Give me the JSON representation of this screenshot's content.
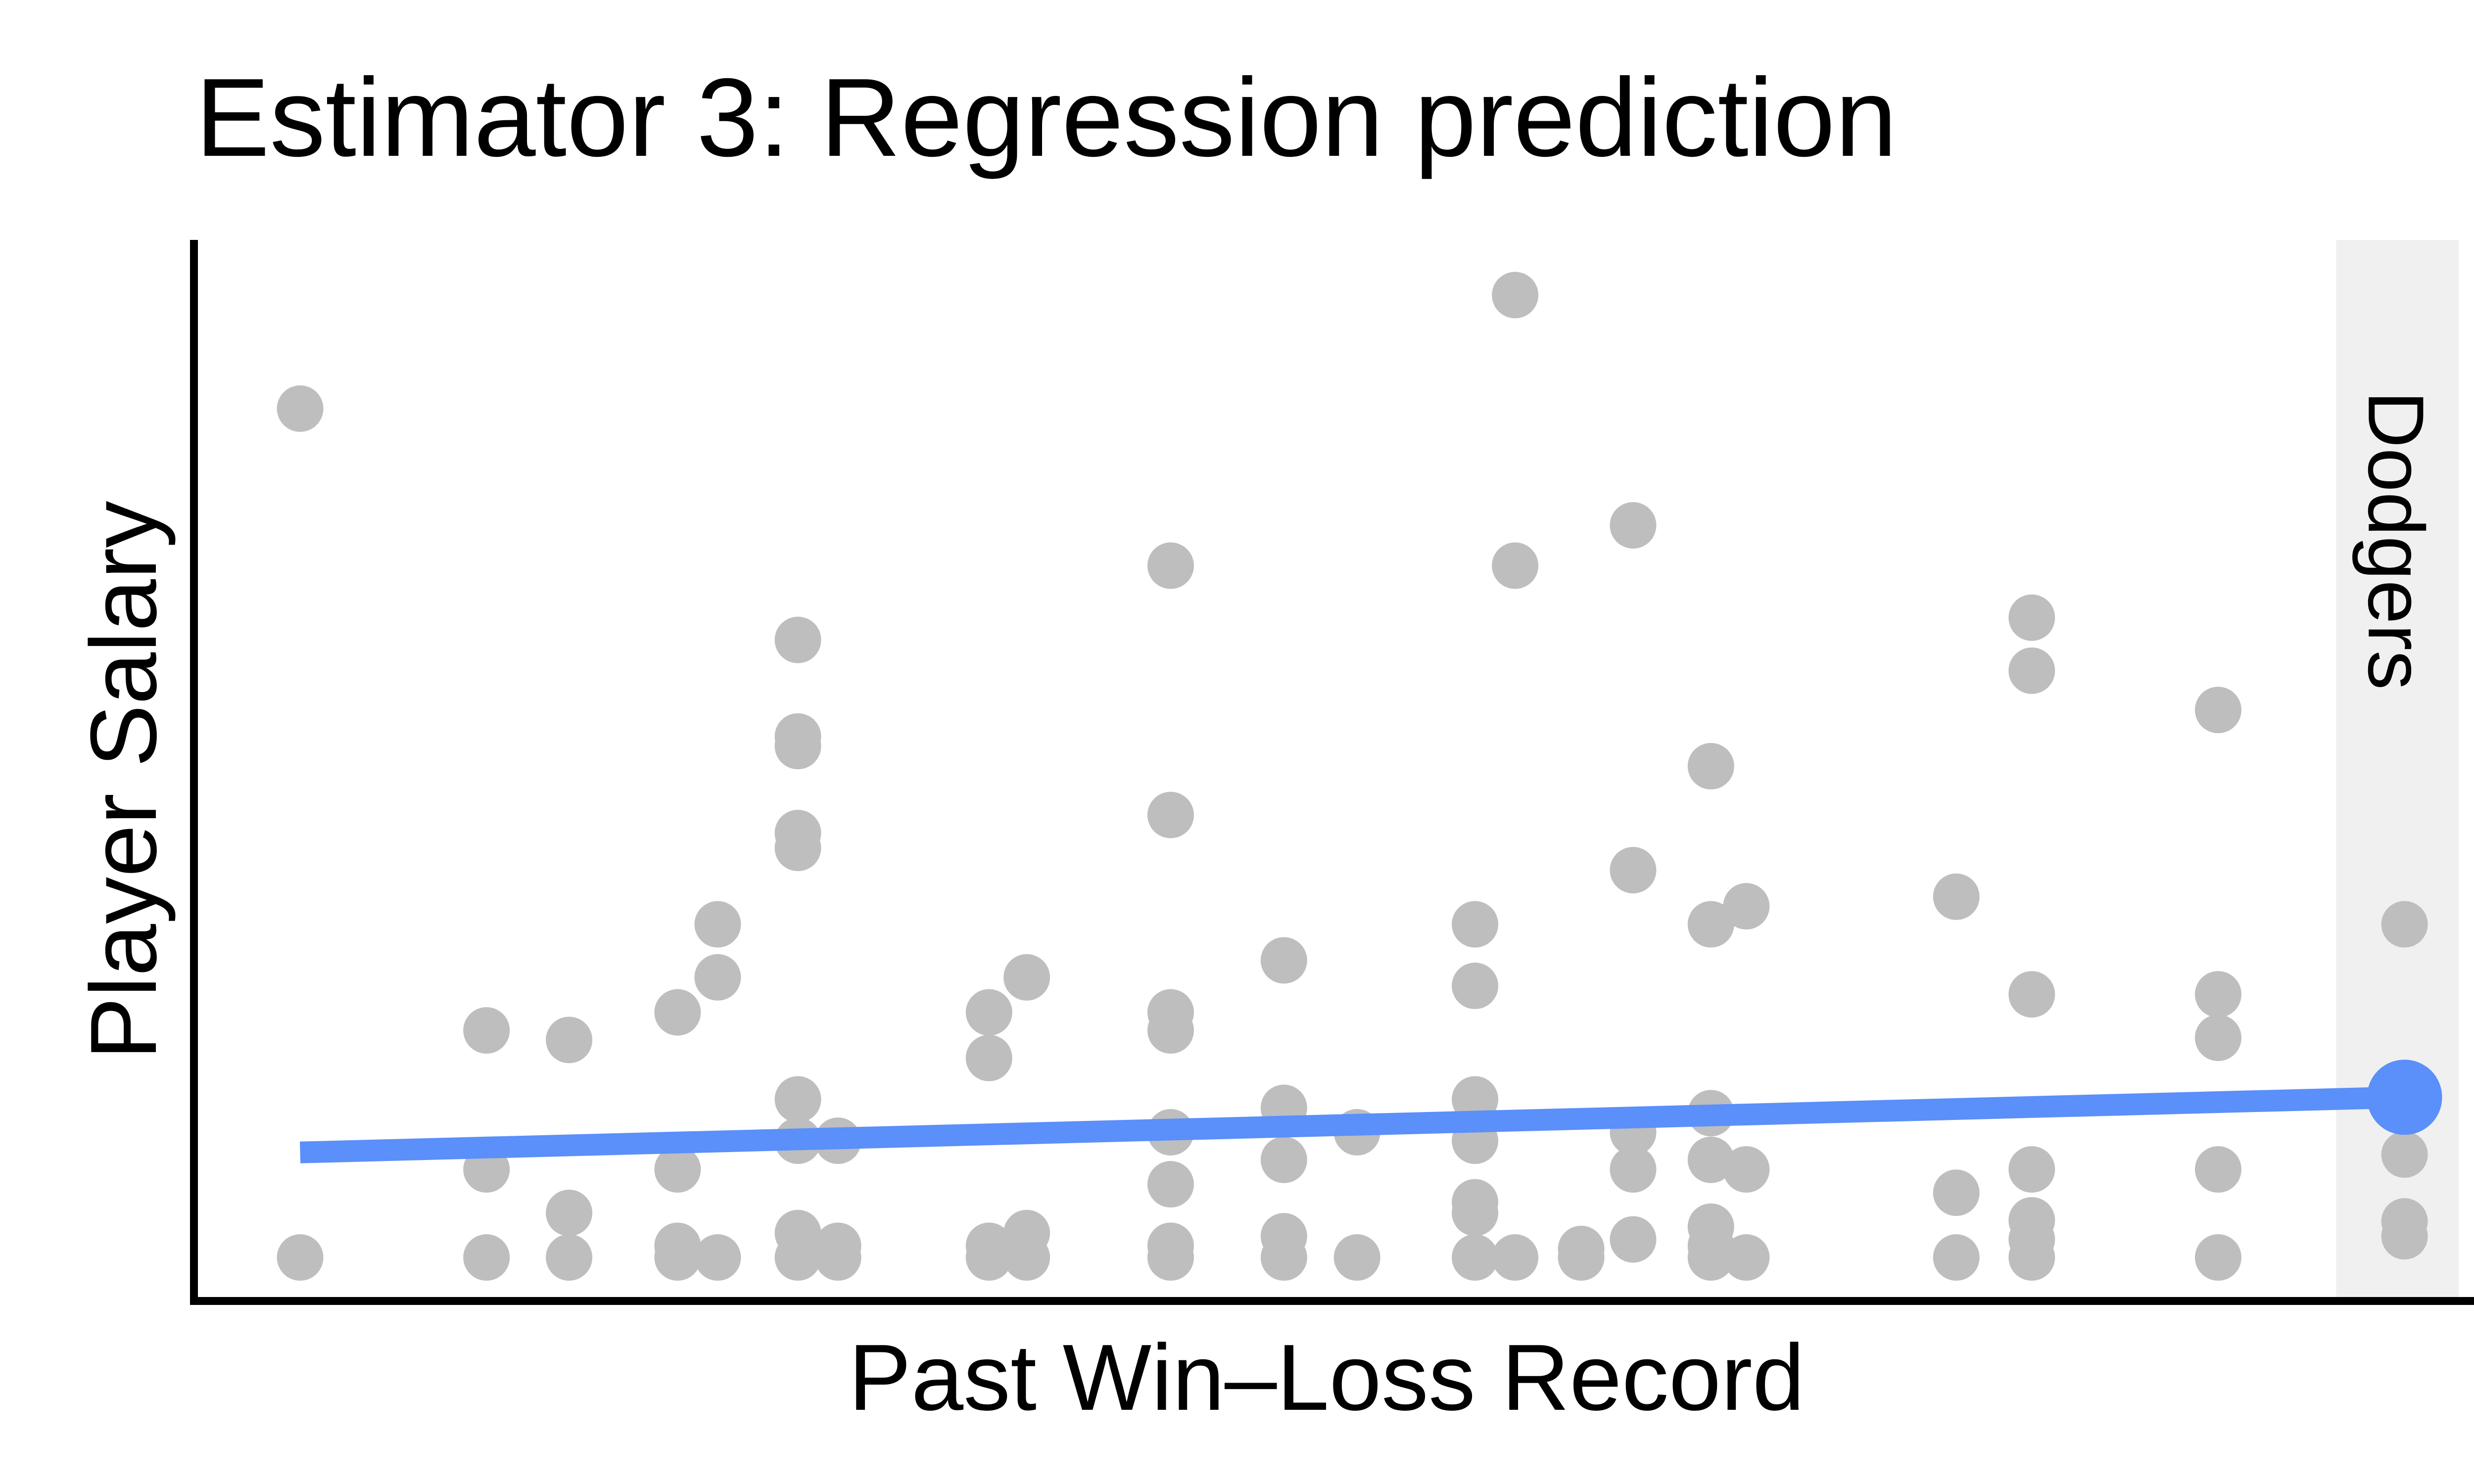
{
  "chart_data": {
    "type": "scatter",
    "title": "Estimator 3: Regression prediction",
    "xlabel": "Past Win–Loss Record",
    "ylabel": "Player Salary",
    "xlim": [
      0,
      100
    ],
    "ylim": [
      0,
      100
    ],
    "grid": false,
    "axis_ticks": false,
    "colors": {
      "points": "#bebebe",
      "fit_line": "#5b8ff9",
      "highlight_band": "#f0f0f0",
      "axis": "#000000"
    },
    "points": [
      {
        "x": 4.5,
        "y": 84.1
      },
      {
        "x": 4.5,
        "y": 4.1
      },
      {
        "x": 12.4,
        "y": 25.5
      },
      {
        "x": 12.4,
        "y": 12.4
      },
      {
        "x": 12.4,
        "y": 4.1
      },
      {
        "x": 15.9,
        "y": 24.6
      },
      {
        "x": 15.9,
        "y": 8.3
      },
      {
        "x": 15.9,
        "y": 4.1
      },
      {
        "x": 20.5,
        "y": 27.2
      },
      {
        "x": 20.5,
        "y": 12.4
      },
      {
        "x": 20.5,
        "y": 5.2
      },
      {
        "x": 20.5,
        "y": 4.1
      },
      {
        "x": 22.2,
        "y": 35.5
      },
      {
        "x": 22.2,
        "y": 30.5
      },
      {
        "x": 22.2,
        "y": 4.1
      },
      {
        "x": 25.6,
        "y": 62.3
      },
      {
        "x": 25.6,
        "y": 53.2
      },
      {
        "x": 25.6,
        "y": 52.3
      },
      {
        "x": 25.6,
        "y": 44.1
      },
      {
        "x": 25.6,
        "y": 42.7
      },
      {
        "x": 25.6,
        "y": 19.0
      },
      {
        "x": 25.6,
        "y": 15.1
      },
      {
        "x": 25.6,
        "y": 6.4
      },
      {
        "x": 25.6,
        "y": 4.1
      },
      {
        "x": 27.3,
        "y": 15.1
      },
      {
        "x": 27.3,
        "y": 5.2
      },
      {
        "x": 27.3,
        "y": 4.1
      },
      {
        "x": 33.7,
        "y": 27.2
      },
      {
        "x": 33.7,
        "y": 22.9
      },
      {
        "x": 33.7,
        "y": 5.2
      },
      {
        "x": 33.7,
        "y": 4.1
      },
      {
        "x": 35.3,
        "y": 30.5
      },
      {
        "x": 35.3,
        "y": 6.4
      },
      {
        "x": 35.3,
        "y": 4.1
      },
      {
        "x": 41.4,
        "y": 69.3
      },
      {
        "x": 41.4,
        "y": 45.8
      },
      {
        "x": 41.4,
        "y": 27.2
      },
      {
        "x": 41.4,
        "y": 25.5
      },
      {
        "x": 41.4,
        "y": 15.9
      },
      {
        "x": 41.4,
        "y": 11.0
      },
      {
        "x": 41.4,
        "y": 5.2
      },
      {
        "x": 41.4,
        "y": 4.1
      },
      {
        "x": 46.2,
        "y": 32.1
      },
      {
        "x": 46.2,
        "y": 18.2
      },
      {
        "x": 46.2,
        "y": 13.3
      },
      {
        "x": 46.2,
        "y": 6.1
      },
      {
        "x": 46.2,
        "y": 4.1
      },
      {
        "x": 49.3,
        "y": 15.9
      },
      {
        "x": 49.3,
        "y": 4.1
      },
      {
        "x": 54.3,
        "y": 35.5
      },
      {
        "x": 54.3,
        "y": 29.7
      },
      {
        "x": 54.3,
        "y": 19.0
      },
      {
        "x": 54.3,
        "y": 15.1
      },
      {
        "x": 54.3,
        "y": 9.3
      },
      {
        "x": 54.3,
        "y": 8.3
      },
      {
        "x": 54.3,
        "y": 4.1
      },
      {
        "x": 56.0,
        "y": 94.8
      },
      {
        "x": 56.0,
        "y": 69.3
      },
      {
        "x": 56.0,
        "y": 4.1
      },
      {
        "x": 58.8,
        "y": 4.9
      },
      {
        "x": 58.8,
        "y": 4.1
      },
      {
        "x": 61.0,
        "y": 73.1
      },
      {
        "x": 61.0,
        "y": 40.6
      },
      {
        "x": 61.0,
        "y": 15.9
      },
      {
        "x": 61.0,
        "y": 12.4
      },
      {
        "x": 61.0,
        "y": 5.8
      },
      {
        "x": 64.3,
        "y": 50.4
      },
      {
        "x": 64.3,
        "y": 35.5
      },
      {
        "x": 64.3,
        "y": 17.7
      },
      {
        "x": 64.3,
        "y": 13.3
      },
      {
        "x": 64.3,
        "y": 7.0
      },
      {
        "x": 64.3,
        "y": 5.2
      },
      {
        "x": 64.3,
        "y": 4.1
      },
      {
        "x": 65.8,
        "y": 37.2
      },
      {
        "x": 65.8,
        "y": 12.4
      },
      {
        "x": 65.8,
        "y": 4.1
      },
      {
        "x": 74.7,
        "y": 38.1
      },
      {
        "x": 74.7,
        "y": 10.2
      },
      {
        "x": 74.7,
        "y": 4.1
      },
      {
        "x": 77.9,
        "y": 64.4
      },
      {
        "x": 77.9,
        "y": 59.4
      },
      {
        "x": 77.9,
        "y": 28.9
      },
      {
        "x": 77.9,
        "y": 12.4
      },
      {
        "x": 77.9,
        "y": 7.6
      },
      {
        "x": 77.9,
        "y": 5.8
      },
      {
        "x": 77.9,
        "y": 4.1
      },
      {
        "x": 85.8,
        "y": 55.7
      },
      {
        "x": 85.8,
        "y": 28.9
      },
      {
        "x": 85.8,
        "y": 24.8
      },
      {
        "x": 85.8,
        "y": 12.4
      },
      {
        "x": 85.8,
        "y": 4.1
      },
      {
        "x": 93.7,
        "y": 35.5
      },
      {
        "x": 93.7,
        "y": 13.8
      },
      {
        "x": 93.7,
        "y": 7.5
      },
      {
        "x": 93.7,
        "y": 6.1
      }
    ],
    "regression_line": {
      "x": [
        4.5,
        93.7
      ],
      "y": [
        14.0,
        19.2
      ]
    },
    "prediction_point": {
      "x": 93.7,
      "y": 19.2
    },
    "highlight_band": {
      "x_range": [
        90.8,
        96.0
      ],
      "label": "Dodgers"
    }
  }
}
